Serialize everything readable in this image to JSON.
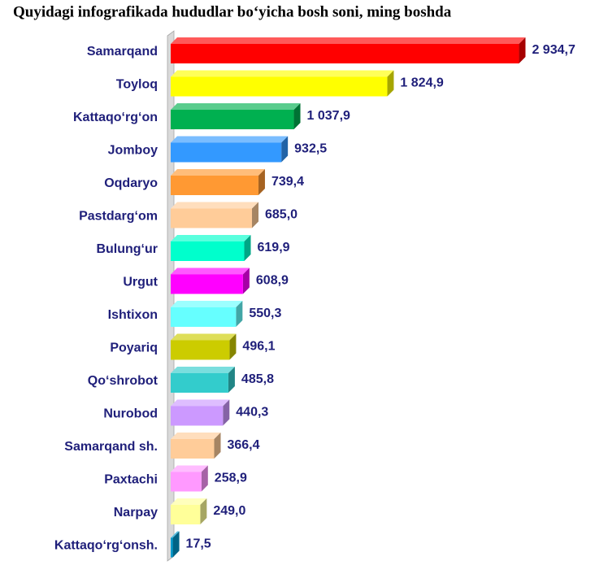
{
  "chart_data": {
    "type": "bar3d",
    "orientation": "horizontal",
    "title": "Quyidagi infografikada hududlar bo‘yicha bosh soni, ming boshda",
    "categories": [
      "Samarqand",
      "Toyloq",
      "Kattaqo‘rg‘on",
      "Jomboy",
      "Oqdaryo",
      "Pastdarg‘om",
      "Bulung‘ur",
      "Urgut",
      "Ishtixon",
      "Poyariq",
      "Qo‘shrobot",
      "Nurobod",
      "Samarqand sh.",
      "Paxtachi",
      "Narpay",
      "Kattaqo‘rg‘onsh."
    ],
    "values": [
      2934.7,
      1824.9,
      1037.9,
      932.5,
      739.4,
      685.0,
      619.9,
      608.9,
      550.3,
      496.1,
      485.8,
      440.3,
      366.4,
      258.9,
      249.0,
      17.5
    ],
    "value_labels": [
      "2 934,7",
      "1 824,9",
      "1 037,9",
      "932,5",
      "739,4",
      "685,0",
      "619,9",
      "608,9",
      "550,3",
      "496,1",
      "485,8",
      "440,3",
      "366,4",
      "258,9",
      "249,0",
      "17,5"
    ],
    "colors": [
      "#ff0000",
      "#ffff00",
      "#00b050",
      "#3399ff",
      "#ff9933",
      "#ffcc99",
      "#00ffcc",
      "#ff00ff",
      "#66ffff",
      "#cccc00",
      "#33cccc",
      "#cc99ff",
      "#ffcc99",
      "#ff99ff",
      "#ffff99",
      "#0099cc"
    ],
    "xlim": [
      0,
      3000
    ]
  }
}
